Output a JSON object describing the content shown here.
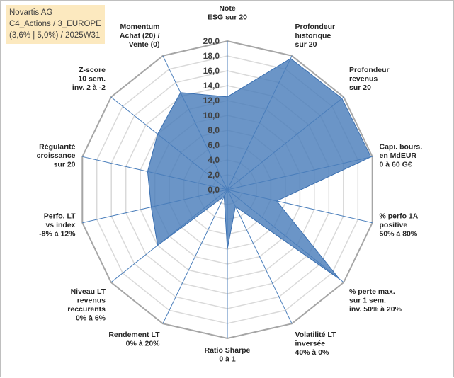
{
  "info": {
    "line1": "Novartis AG",
    "line2": "C4_Actions / 3_EUROPE",
    "line3": "(3,6% | 5,0%) / 2025W31"
  },
  "colors": {
    "fill": "#4a7ebb",
    "stroke": "#3a6fb0",
    "spoke": "#4a7ebb",
    "grid": "#d9d9d9",
    "outer_grid": "#a6a6a6"
  },
  "chart_data": {
    "type": "radar",
    "rmin": 0,
    "rmax": 20,
    "tick_step": 2,
    "tick_labels": [
      "0,0",
      "2,0",
      "4,0",
      "6,0",
      "8,0",
      "10,0",
      "12,0",
      "14,0",
      "16,0",
      "18,0",
      "20,0"
    ],
    "axes": [
      {
        "label": [
          "Note",
          "ESG sur 20"
        ],
        "value": 12.5
      },
      {
        "label": [
          "Profondeur",
          "historique",
          "sur 20"
        ],
        "value": 19.6
      },
      {
        "label": [
          "Profondeur",
          "revenus",
          "sur 20"
        ],
        "value": 19.7
      },
      {
        "label": [
          "Capi. bours.",
          "en MdEUR",
          "0 à 60 G€"
        ],
        "value": 19.8
      },
      {
        "label": [
          "% perfo 1A",
          "positive",
          "50% à 80%"
        ],
        "value": 6.8
      },
      {
        "label": [
          "% perte max.",
          "sur 1 sem.",
          "inv. 50% à 20%"
        ],
        "value": 19.3
      },
      {
        "label": [
          "Volatilité LT",
          "inversée",
          "40% à 0%"
        ],
        "value": 2.5
      },
      {
        "label": [
          "Ratio Sharpe",
          "0 à 1"
        ],
        "value": 8.0
      },
      {
        "label": [
          "Rendement LT",
          "0% à 20%"
        ],
        "value": 1.0
      },
      {
        "label": [
          "Niveau LT",
          "revenus",
          "reccurents",
          "0% à 6%"
        ],
        "value": 12.0
      },
      {
        "label": [
          "Perfo. LT",
          "vs index",
          "-8% à 12%"
        ],
        "value": 10.5
      },
      {
        "label": [
          "Régularité",
          "croissance",
          "sur 20"
        ],
        "value": 11.0
      },
      {
        "label": [
          "Z-score",
          "10 sem.",
          "inv. 2 à -2"
        ],
        "value": 12.0
      },
      {
        "label": [
          "Momentum",
          "Achat (20) /",
          "Vente (0)"
        ],
        "value": 14.5
      }
    ]
  }
}
